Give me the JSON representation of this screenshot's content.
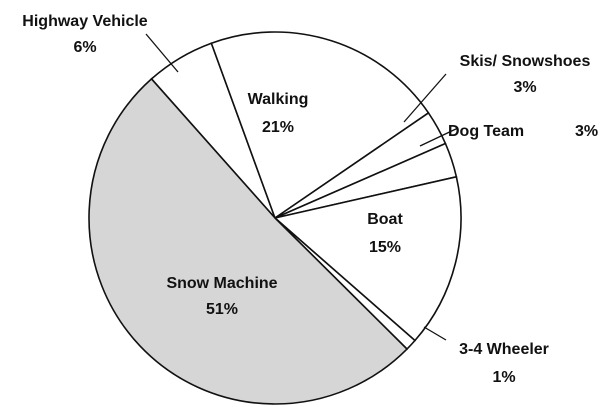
{
  "chart_data": {
    "type": "pie",
    "categories": [
      "Highway Vehicle",
      "Walking",
      "Skis/ Snowshoes",
      "Dog Team",
      "Boat",
      "3-4 Wheeler",
      "Snow Machine"
    ],
    "values": [
      6,
      21,
      3,
      3,
      15,
      1,
      51
    ],
    "value_labels": [
      "6%",
      "21%",
      "3%",
      "3%",
      "15%",
      "1%",
      "51%"
    ],
    "colors": [
      "#ffffff",
      "#ffffff",
      "#ffffff",
      "#ffffff",
      "#ffffff",
      "#ffffff",
      "#d6d6d6"
    ]
  }
}
